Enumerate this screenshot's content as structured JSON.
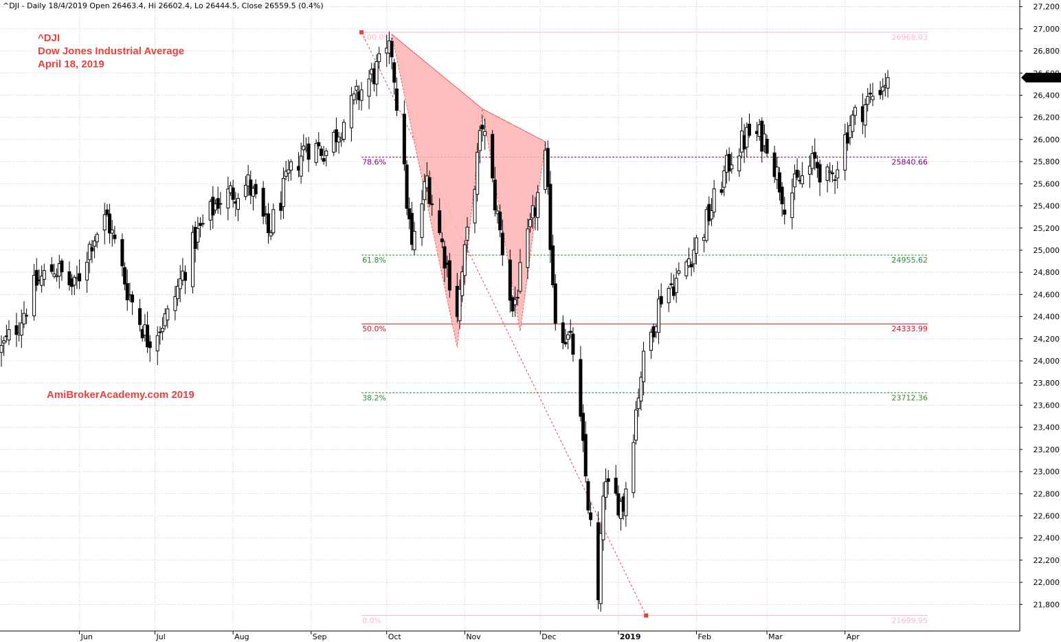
{
  "header": "^DJI - Daily 18/4/2019 Open 26463.4, Hi 26602.4, Lo 26444.5, Close 26559.5 (0.4%)",
  "titles": [
    "^DJI",
    "Dow Jones Industrial Average",
    "April 18, 2019"
  ],
  "watermark": "AmiBrokerAcademy.com   2019",
  "colors": {
    "title": "#e8413c",
    "pattern_fill": "#ffb3b3",
    "pattern_edge": "#e8413c",
    "grid": "#c8c8c8",
    "last_price_bg": "#000000"
  },
  "chart_data": {
    "type": "candlestick",
    "ylim": [
      21560,
      27260
    ],
    "y_ticks": [
      21800,
      22000,
      22200,
      22400,
      22600,
      22800,
      23000,
      23200,
      23400,
      23600,
      23800,
      24000,
      24200,
      24400,
      24600,
      24800,
      25000,
      25200,
      25400,
      25600,
      25800,
      26000,
      26200,
      26400,
      26600,
      26800,
      27000,
      27200
    ],
    "y_tick_labels": [
      "21,800",
      "22,000",
      "22,200",
      "22,400",
      "22,600",
      "22,800",
      "23,000",
      "23,200",
      "23,400",
      "23,600",
      "23,800",
      "24,000",
      "24,200",
      "24,400",
      "24,600",
      "24,800",
      "25,000",
      "25,200",
      "25,400",
      "25,600",
      "25,800",
      "26,000",
      "26,200",
      "26,400",
      "26,600",
      "26,800",
      "27,000",
      "27,200"
    ],
    "x_range": [
      "2018-05-01",
      "2019-04-30"
    ],
    "months": [
      {
        "date": "2018-06-01",
        "label": "Jun"
      },
      {
        "date": "2018-07-01",
        "label": "Jul"
      },
      {
        "date": "2018-08-01",
        "label": "Aug"
      },
      {
        "date": "2018-09-01",
        "label": "Sep"
      },
      {
        "date": "2018-10-01",
        "label": "Oct"
      },
      {
        "date": "2018-11-01",
        "label": "Nov"
      },
      {
        "date": "2018-12-01",
        "label": "Dec"
      },
      {
        "date": "2019-01-01",
        "label": "2019"
      },
      {
        "date": "2019-02-01",
        "label": "Feb"
      },
      {
        "date": "2019-03-01",
        "label": "Mar"
      },
      {
        "date": "2019-04-01",
        "label": "Apr"
      }
    ],
    "anchors": [
      {
        "date": "2018-05-01",
        "close": 24100
      },
      {
        "date": "2018-05-08",
        "close": 24350
      },
      {
        "date": "2018-05-15",
        "close": 24700
      },
      {
        "date": "2018-05-22",
        "close": 24850
      },
      {
        "date": "2018-05-30",
        "close": 24650
      },
      {
        "date": "2018-06-06",
        "close": 25100
      },
      {
        "date": "2018-06-12",
        "close": 25300
      },
      {
        "date": "2018-06-20",
        "close": 24650
      },
      {
        "date": "2018-06-28",
        "close": 24200
      },
      {
        "date": "2018-07-06",
        "close": 24400
      },
      {
        "date": "2018-07-17",
        "close": 25100
      },
      {
        "date": "2018-07-26",
        "close": 25450
      },
      {
        "date": "2018-08-07",
        "close": 25600
      },
      {
        "date": "2018-08-15",
        "close": 25150
      },
      {
        "date": "2018-08-23",
        "close": 25650
      },
      {
        "date": "2018-08-30",
        "close": 25950
      },
      {
        "date": "2018-09-07",
        "close": 25900
      },
      {
        "date": "2018-09-21",
        "close": 26450
      },
      {
        "date": "2018-10-03",
        "close": 26800
      },
      {
        "date": "2018-10-11",
        "close": 25000
      },
      {
        "date": "2018-10-17",
        "close": 25650
      },
      {
        "date": "2018-10-29",
        "close": 24450
      },
      {
        "date": "2018-11-08",
        "close": 26150
      },
      {
        "date": "2018-11-20",
        "close": 24450
      },
      {
        "date": "2018-12-03",
        "close": 25800
      },
      {
        "date": "2018-12-07",
        "close": 24400
      },
      {
        "date": "2018-12-14",
        "close": 24100
      },
      {
        "date": "2018-12-24",
        "close": 21800
      },
      {
        "date": "2018-12-26",
        "close": 22850
      },
      {
        "date": "2019-01-03",
        "close": 22700
      },
      {
        "date": "2019-01-10",
        "close": 23900
      },
      {
        "date": "2019-01-18",
        "close": 24600
      },
      {
        "date": "2019-01-25",
        "close": 24750
      },
      {
        "date": "2019-02-04",
        "close": 25200
      },
      {
        "date": "2019-02-15",
        "close": 25850
      },
      {
        "date": "2019-02-22",
        "close": 26050
      },
      {
        "date": "2019-03-01",
        "close": 26000
      },
      {
        "date": "2019-03-08",
        "close": 25450
      },
      {
        "date": "2019-03-20",
        "close": 25800
      },
      {
        "date": "2019-03-26",
        "close": 25600
      },
      {
        "date": "2019-04-03",
        "close": 26150
      },
      {
        "date": "2019-04-12",
        "close": 26400
      },
      {
        "date": "2019-04-18",
        "close": 26559.5
      }
    ],
    "fib_levels": [
      {
        "pct": "100.0%",
        "value": 26968.03,
        "label": "26968.03",
        "color": "#ffb6c1"
      },
      {
        "pct": "78.6%",
        "value": 25840.66,
        "label": "25840.66",
        "color": "#800080"
      },
      {
        "pct": "61.8%",
        "value": 24955.62,
        "label": "24955.62",
        "color": "#2e8b2e"
      },
      {
        "pct": "50.0%",
        "value": 24333.99,
        "label": "24333.99",
        "color": "#d01020"
      },
      {
        "pct": "38.2%",
        "value": 23712.36,
        "label": "23712.36",
        "color": "#2e8b2e"
      },
      {
        "pct": "0.0%",
        "value": 21699.95,
        "label": "21699.95",
        "color": "#ffb6c1"
      }
    ],
    "fib_range": {
      "start": "2018-09-21",
      "end": "2019-04-30"
    },
    "fib_anchor_high": {
      "date": "2018-09-21",
      "value": 26968.03
    },
    "fib_anchor_low": {
      "date": "2018-12-24",
      "value": 21699.95
    },
    "pattern_points": [
      {
        "date": "2018-10-03",
        "value": 26951
      },
      {
        "date": "2018-10-29",
        "value": 24122
      },
      {
        "date": "2018-11-08",
        "value": 26277
      },
      {
        "date": "2018-11-23",
        "value": 24268
      },
      {
        "date": "2018-12-03",
        "value": 25980
      }
    ],
    "last_price": {
      "value": 26559.5,
      "label": "26,559.5"
    }
  }
}
